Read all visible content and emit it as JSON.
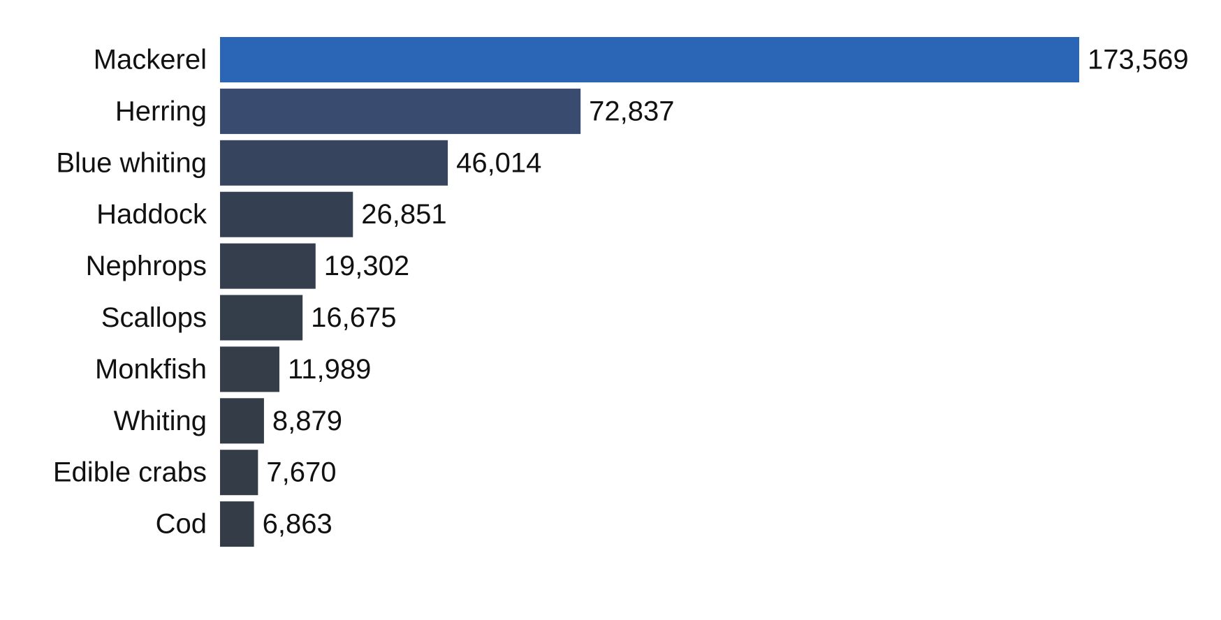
{
  "chart_data": {
    "type": "bar",
    "orientation": "horizontal",
    "title": "",
    "xlabel": "",
    "ylabel": "",
    "grid": false,
    "legend": "none",
    "xlim": [
      0,
      173569
    ],
    "categories": [
      "Mackerel",
      "Herring",
      "Blue whiting",
      "Haddock",
      "Nephrops",
      "Scallops",
      "Monkfish",
      "Whiting",
      "Edible crabs",
      "Cod"
    ],
    "values": [
      173569,
      72837,
      46014,
      26851,
      19302,
      16675,
      11989,
      8879,
      7670,
      6863
    ],
    "value_labels": [
      "173,569",
      "72,837",
      "46,014",
      "26,851",
      "19,302",
      "16,675",
      "11,989",
      "8,879",
      "7,670",
      "6,863"
    ],
    "colors": [
      "#2b65b5",
      "#3a4b70",
      "#36445e",
      "#343f52",
      "#343e4d",
      "#343d4a",
      "#343d48",
      "#343d47",
      "#343d47",
      "#343d47"
    ]
  }
}
